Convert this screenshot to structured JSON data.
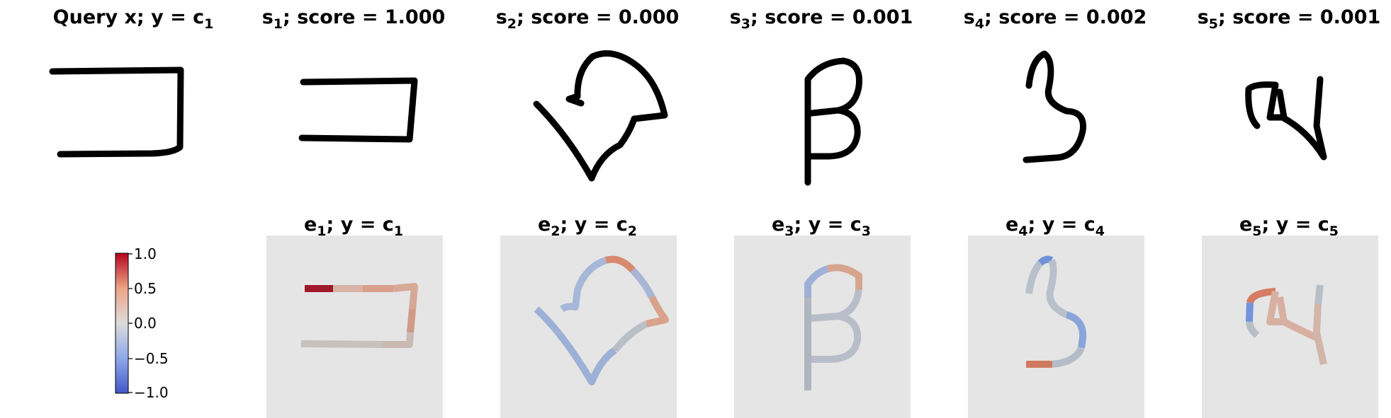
{
  "colors": {
    "ink": "#000000",
    "panel_bg": "#e5e5e5",
    "cmap_low": "#4358c8",
    "cmap_mid": "#dddcdc",
    "cmap_high": "#b3051e"
  },
  "top_row": [
    {
      "sym": "Query x; y",
      "sub": "",
      "rest": " = c",
      "sub2": "1",
      "glyph": "query"
    },
    {
      "sym": "s",
      "sub": "1",
      "rest": "; score = 1.000",
      "sub2": "",
      "glyph": "box"
    },
    {
      "sym": "s",
      "sub": "2",
      "rest": "; score = 0.000",
      "sub2": "",
      "glyph": "swirl"
    },
    {
      "sym": "s",
      "sub": "3",
      "rest": "; score = 0.001",
      "sub2": "",
      "glyph": "beta"
    },
    {
      "sym": "s",
      "sub": "4",
      "rest": "; score = 0.002",
      "sub2": "",
      "glyph": "three"
    },
    {
      "sym": "s",
      "sub": "5",
      "rest": "; score = 0.001",
      "sub2": "",
      "glyph": "char5"
    }
  ],
  "bottom_row": [
    {
      "sym": "e",
      "sub": "1",
      "rest": "; y = c",
      "sub2": "1"
    },
    {
      "sym": "e",
      "sub": "2",
      "rest": "; y = c",
      "sub2": "2"
    },
    {
      "sym": "e",
      "sub": "3",
      "rest": "; y = c",
      "sub2": "3"
    },
    {
      "sym": "e",
      "sub": "4",
      "rest": "; y = c",
      "sub2": "4"
    },
    {
      "sym": "e",
      "sub": "5",
      "rest": "; y = c",
      "sub2": "5"
    }
  ],
  "colorbar": {
    "ticks": [
      "1.0",
      "0.5",
      "0.0",
      "−0.5",
      "−1.0"
    ],
    "values": [
      1.0,
      0.5,
      0.0,
      -0.5,
      -1.0
    ]
  },
  "explanation_colors": {
    "e1": [
      "#a0192a",
      "#d9b3a6",
      "#d8a08c",
      "#d6a896",
      "#d19a86",
      "#cbbab4",
      "#c7c0bf"
    ],
    "e2": [
      "#9db0d6",
      "#a7b7d8",
      "#d78a6e",
      "#a8b6d6",
      "#d8a28c",
      "#b8bfc7"
    ],
    "e3": [
      "#9eb0d8",
      "#d7a48e",
      "#b8bec9",
      "#b0b6c0"
    ],
    "e4": [
      "#7092d8",
      "#b8c0cb",
      "#8aa5da",
      "#cf7a60",
      "#b4bcc8"
    ],
    "e5": [
      "#d57c62",
      "#7294dc",
      "#b8bec6",
      "#d7b0a1",
      "#d3b5aa"
    ]
  }
}
